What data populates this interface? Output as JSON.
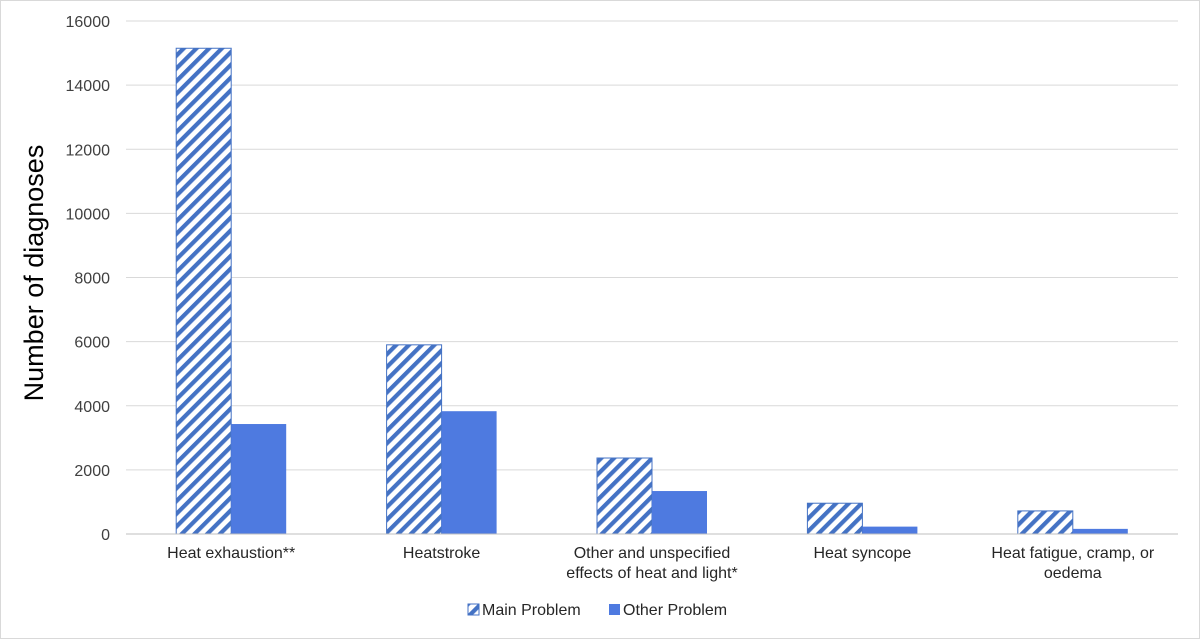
{
  "chart_data": {
    "type": "bar",
    "title": "",
    "xlabel": "",
    "ylabel": "Number of diagnoses",
    "ylim": [
      0,
      16000
    ],
    "yticks": [
      0,
      2000,
      4000,
      6000,
      8000,
      10000,
      12000,
      14000,
      16000
    ],
    "grid": true,
    "legend_position": "bottom",
    "categories": [
      [
        "Heat exhaustion**"
      ],
      [
        "Heatstroke"
      ],
      [
        "Other and unspecified",
        "effects of heat and light*"
      ],
      [
        "Heat syncope"
      ],
      [
        "Heat fatigue, cramp, or",
        "oedema"
      ]
    ],
    "series": [
      {
        "name": "Main Problem",
        "style": "hatched",
        "color": "#4472c4",
        "values": [
          15150,
          5900,
          2370,
          960,
          720
        ]
      },
      {
        "name": "Other Problem",
        "style": "solid",
        "color": "#4e7ae0",
        "values": [
          3430,
          3830,
          1340,
          230,
          160
        ]
      }
    ]
  }
}
